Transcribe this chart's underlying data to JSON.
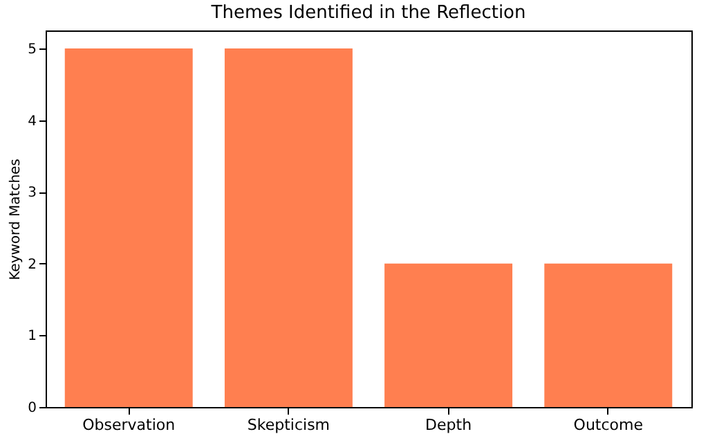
{
  "chart_data": {
    "type": "bar",
    "title": "Themes Identified in the Reflection",
    "ylabel": "Keyword Matches",
    "categories": [
      "Observation",
      "Skepticism",
      "Depth",
      "Outcome"
    ],
    "values": [
      5,
      5,
      2,
      2
    ],
    "color": "#ff7f50",
    "ylim": [
      0,
      5.25
    ],
    "yticks": [
      0,
      1,
      2,
      3,
      4,
      5
    ],
    "grid": false
  }
}
